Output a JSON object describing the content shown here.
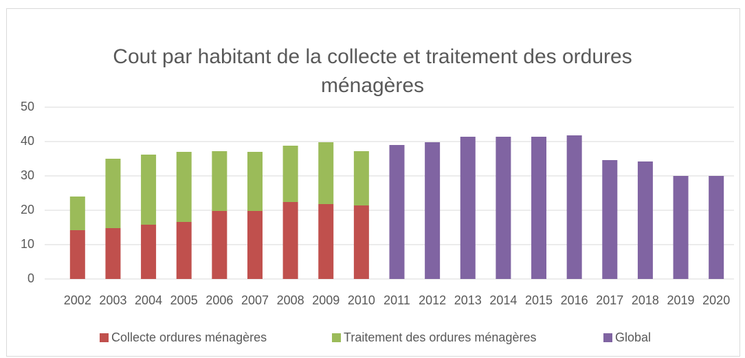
{
  "chart_data": {
    "type": "stacked_bar",
    "title": "Cout par habitant de la collecte et traitement des ordures ménagères",
    "categories": [
      "2002",
      "2003",
      "2004",
      "2005",
      "2006",
      "2007",
      "2008",
      "2009",
      "2010",
      "2011",
      "2012",
      "2013",
      "2014",
      "2015",
      "2016",
      "2017",
      "2018",
      "2019",
      "2020"
    ],
    "series": [
      {
        "name": "Collecte ordures ménagères",
        "color": "#c0504d",
        "values": [
          14.2,
          14.8,
          15.8,
          16.6,
          19.8,
          19.8,
          22.4,
          21.8,
          21.4,
          null,
          null,
          null,
          null,
          null,
          null,
          null,
          null,
          null,
          null
        ]
      },
      {
        "name": "Traitement des ordures ménagères",
        "color": "#9bbb59",
        "values": [
          9.8,
          20.2,
          20.4,
          20.4,
          17.4,
          17.2,
          16.4,
          18,
          15.8,
          null,
          null,
          null,
          null,
          null,
          null,
          null,
          null,
          null,
          null
        ]
      },
      {
        "name": "Global",
        "color": "#8064a2",
        "values": [
          null,
          null,
          null,
          null,
          null,
          null,
          null,
          null,
          null,
          39,
          39.8,
          41.4,
          41.4,
          41.4,
          41.8,
          34.6,
          34.2,
          30,
          30
        ]
      }
    ],
    "ylim": [
      0,
      50
    ],
    "yticks": [
      0,
      10,
      20,
      30,
      40,
      50
    ],
    "grid": true,
    "legend": "bottom"
  }
}
